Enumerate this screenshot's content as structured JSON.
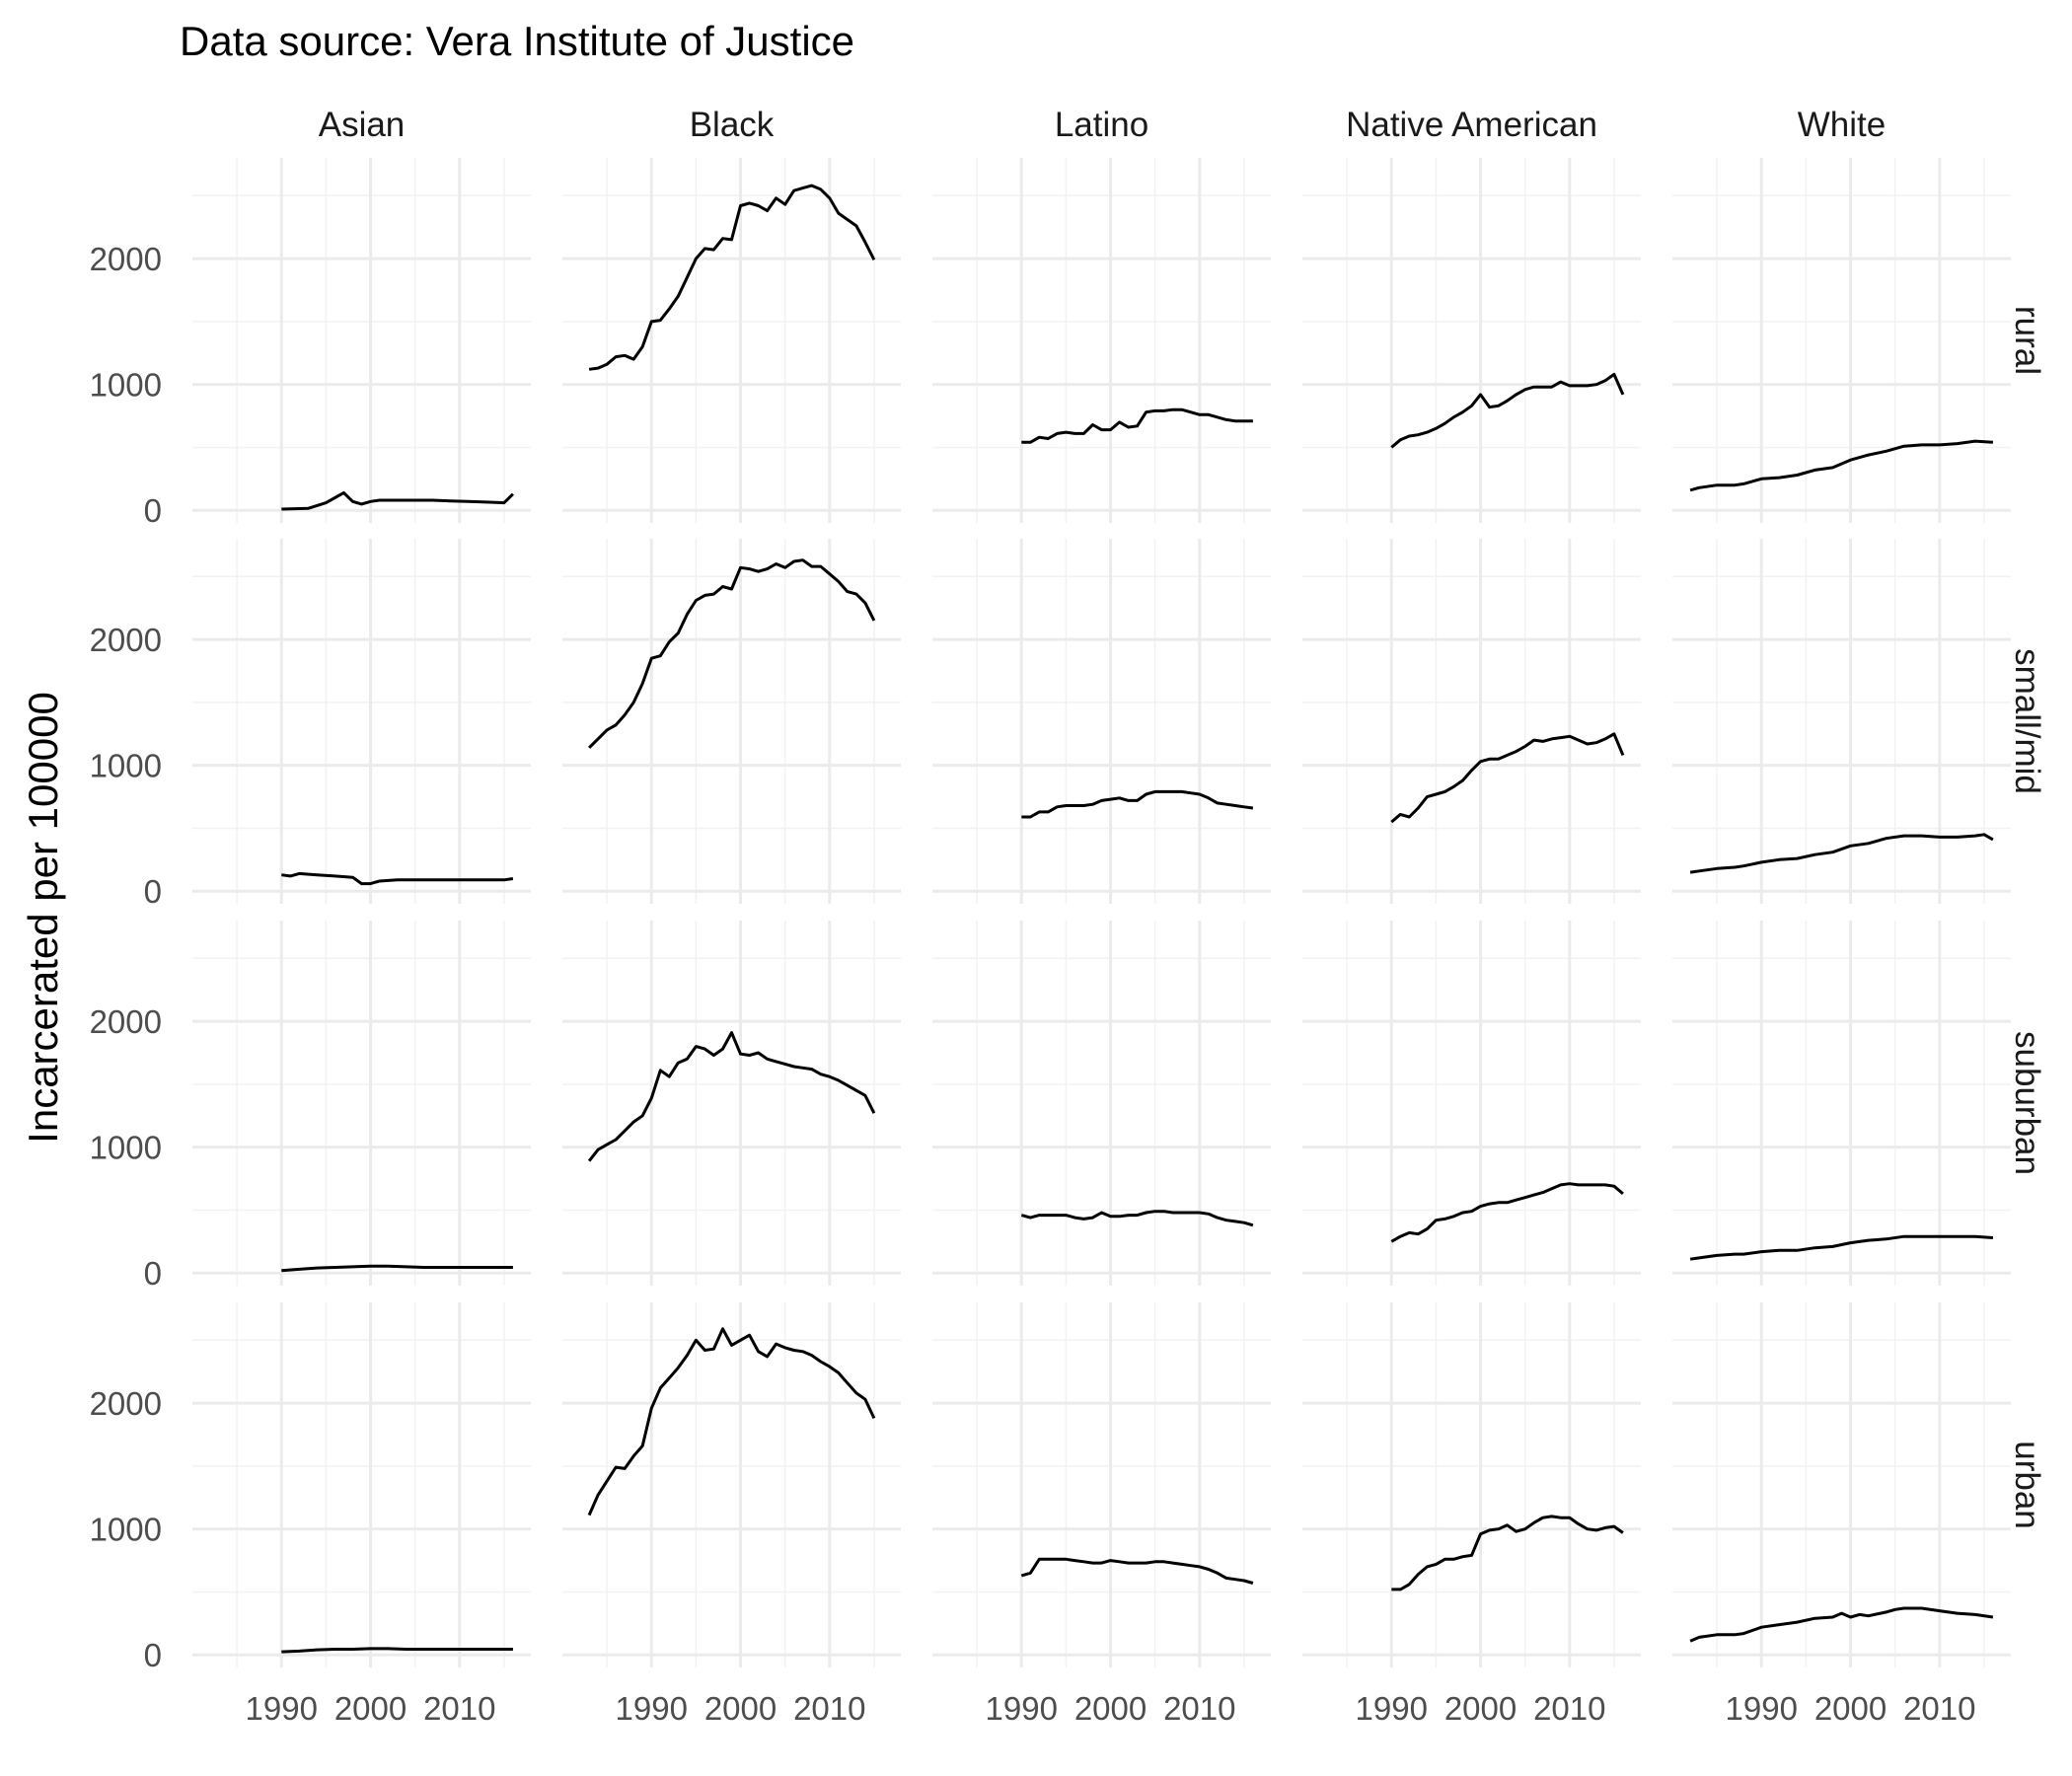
{
  "chart_data": {
    "type": "line",
    "title": "Data source: Vera Institute of Justice",
    "xlabel": "",
    "ylabel": "Incarcerated per 100000",
    "columns": [
      "Asian",
      "Black",
      "Latino",
      "Native American",
      "White"
    ],
    "rows": [
      "rural",
      "small/mid",
      "suburban",
      "urban"
    ],
    "xlim": [
      1980,
      2018
    ],
    "ylim": [
      -100,
      2800
    ],
    "x_ticks": [
      1990,
      2000,
      2010
    ],
    "y_ticks": [
      0,
      1000,
      2000
    ],
    "grid": true,
    "facets": [
      {
        "row": "rural",
        "column": "Asian",
        "x": [
          1990,
          1993,
          1995,
          1997,
          1998,
          1999,
          2000,
          2001,
          2003,
          2005,
          2007,
          2009,
          2011,
          2013,
          2015,
          2016
        ],
        "y": [
          10,
          15,
          60,
          140,
          70,
          50,
          70,
          80,
          80,
          80,
          80,
          75,
          70,
          65,
          60,
          130
        ]
      },
      {
        "row": "rural",
        "column": "Black",
        "x": [
          1983,
          1984,
          1985,
          1986,
          1987,
          1988,
          1989,
          1990,
          1991,
          1992,
          1993,
          1994,
          1995,
          1996,
          1997,
          1998,
          1999,
          2000,
          2001,
          2002,
          2003,
          2004,
          2005,
          2006,
          2007,
          2008,
          2009,
          2010,
          2011,
          2012,
          2013,
          2014,
          2015
        ],
        "y": [
          1120,
          1130,
          1160,
          1220,
          1230,
          1200,
          1300,
          1500,
          1510,
          1600,
          1700,
          1850,
          2000,
          2080,
          2070,
          2160,
          2150,
          2420,
          2440,
          2420,
          2380,
          2480,
          2430,
          2540,
          2560,
          2580,
          2550,
          2480,
          2360,
          2310,
          2260,
          2130,
          1990
        ]
      },
      {
        "row": "rural",
        "column": "Latino",
        "x": [
          1990,
          1991,
          1992,
          1993,
          1994,
          1995,
          1996,
          1997,
          1998,
          1999,
          2000,
          2001,
          2002,
          2003,
          2004,
          2005,
          2006,
          2007,
          2008,
          2009,
          2010,
          2011,
          2012,
          2013,
          2014,
          2015,
          2016
        ],
        "y": [
          540,
          540,
          580,
          570,
          610,
          620,
          610,
          610,
          680,
          640,
          640,
          700,
          660,
          670,
          780,
          790,
          790,
          800,
          800,
          780,
          760,
          760,
          740,
          720,
          710,
          710,
          710
        ]
      },
      {
        "row": "rural",
        "column": "Native American",
        "x": [
          1990,
          1991,
          1992,
          1993,
          1994,
          1995,
          1996,
          1997,
          1998,
          1999,
          2000,
          2001,
          2002,
          2003,
          2004,
          2005,
          2006,
          2007,
          2008,
          2009,
          2010,
          2011,
          2012,
          2013,
          2014,
          2015,
          2016
        ],
        "y": [
          500,
          560,
          590,
          600,
          620,
          650,
          690,
          740,
          780,
          830,
          920,
          820,
          830,
          870,
          920,
          960,
          980,
          980,
          980,
          1020,
          990,
          990,
          990,
          1000,
          1030,
          1080,
          920
        ]
      },
      {
        "row": "rural",
        "column": "White",
        "x": [
          1982,
          1983,
          1985,
          1987,
          1988,
          1990,
          1992,
          1994,
          1996,
          1998,
          2000,
          2002,
          2004,
          2006,
          2008,
          2010,
          2012,
          2014,
          2016
        ],
        "y": [
          160,
          180,
          200,
          200,
          210,
          250,
          260,
          280,
          320,
          340,
          400,
          440,
          470,
          510,
          520,
          520,
          530,
          550,
          540
        ]
      },
      {
        "row": "small/mid",
        "column": "Asian",
        "x": [
          1990,
          1991,
          1992,
          1994,
          1996,
          1998,
          1999,
          2000,
          2001,
          2003,
          2005,
          2007,
          2009,
          2011,
          2013,
          2015,
          2016
        ],
        "y": [
          130,
          120,
          140,
          130,
          120,
          110,
          60,
          60,
          80,
          90,
          90,
          90,
          90,
          90,
          90,
          90,
          100
        ]
      },
      {
        "row": "small/mid",
        "column": "Black",
        "x": [
          1983,
          1984,
          1985,
          1986,
          1987,
          1988,
          1989,
          1990,
          1991,
          1992,
          1993,
          1994,
          1995,
          1996,
          1997,
          1998,
          1999,
          2000,
          2001,
          2002,
          2003,
          2004,
          2005,
          2006,
          2007,
          2008,
          2009,
          2010,
          2011,
          2012,
          2013,
          2014,
          2015
        ],
        "y": [
          1140,
          1210,
          1280,
          1320,
          1400,
          1500,
          1650,
          1850,
          1870,
          1980,
          2050,
          2200,
          2310,
          2350,
          2360,
          2420,
          2400,
          2570,
          2560,
          2540,
          2560,
          2600,
          2570,
          2620,
          2630,
          2580,
          2580,
          2520,
          2460,
          2380,
          2360,
          2290,
          2150
        ]
      },
      {
        "row": "small/mid",
        "column": "Latino",
        "x": [
          1990,
          1991,
          1992,
          1993,
          1994,
          1995,
          1996,
          1997,
          1998,
          1999,
          2000,
          2001,
          2002,
          2003,
          2004,
          2005,
          2006,
          2007,
          2008,
          2009,
          2010,
          2011,
          2012,
          2013,
          2014,
          2015,
          2016
        ],
        "y": [
          590,
          590,
          630,
          630,
          670,
          680,
          680,
          680,
          690,
          720,
          730,
          740,
          720,
          720,
          770,
          790,
          790,
          790,
          790,
          780,
          770,
          740,
          700,
          690,
          680,
          670,
          660
        ]
      },
      {
        "row": "small/mid",
        "column": "Native American",
        "x": [
          1990,
          1991,
          1992,
          1993,
          1994,
          1995,
          1996,
          1997,
          1998,
          1999,
          2000,
          2001,
          2002,
          2003,
          2004,
          2005,
          2006,
          2007,
          2008,
          2009,
          2010,
          2011,
          2012,
          2013,
          2014,
          2015,
          2016
        ],
        "y": [
          550,
          610,
          590,
          660,
          750,
          770,
          790,
          830,
          880,
          960,
          1030,
          1050,
          1050,
          1080,
          1110,
          1150,
          1200,
          1190,
          1210,
          1220,
          1230,
          1200,
          1170,
          1180,
          1210,
          1250,
          1080
        ]
      },
      {
        "row": "small/mid",
        "column": "White",
        "x": [
          1982,
          1983,
          1985,
          1987,
          1988,
          1990,
          1992,
          1994,
          1996,
          1998,
          2000,
          2002,
          2004,
          2006,
          2008,
          2010,
          2012,
          2014,
          2015,
          2016
        ],
        "y": [
          150,
          160,
          180,
          190,
          200,
          230,
          250,
          260,
          290,
          310,
          360,
          380,
          420,
          440,
          440,
          430,
          430,
          440,
          450,
          410
        ]
      },
      {
        "row": "suburban",
        "column": "Asian",
        "x": [
          1990,
          1992,
          1994,
          1996,
          1998,
          2000,
          2002,
          2004,
          2006,
          2008,
          2010,
          2012,
          2014,
          2016
        ],
        "y": [
          20,
          30,
          40,
          45,
          50,
          55,
          55,
          50,
          45,
          45,
          45,
          45,
          45,
          45
        ]
      },
      {
        "row": "suburban",
        "column": "Black",
        "x": [
          1983,
          1984,
          1985,
          1986,
          1987,
          1988,
          1989,
          1990,
          1991,
          1992,
          1993,
          1994,
          1995,
          1996,
          1997,
          1998,
          1999,
          2000,
          2001,
          2002,
          2003,
          2004,
          2005,
          2006,
          2007,
          2008,
          2009,
          2010,
          2011,
          2012,
          2013,
          2014,
          2015
        ],
        "y": [
          890,
          980,
          1020,
          1060,
          1130,
          1200,
          1250,
          1390,
          1610,
          1560,
          1670,
          1700,
          1800,
          1780,
          1730,
          1780,
          1910,
          1740,
          1730,
          1750,
          1700,
          1680,
          1660,
          1640,
          1630,
          1620,
          1580,
          1560,
          1530,
          1490,
          1450,
          1410,
          1270
        ]
      },
      {
        "row": "suburban",
        "column": "Latino",
        "x": [
          1990,
          1991,
          1992,
          1993,
          1994,
          1995,
          1996,
          1997,
          1998,
          1999,
          2000,
          2001,
          2002,
          2003,
          2004,
          2005,
          2006,
          2007,
          2008,
          2009,
          2010,
          2011,
          2012,
          2013,
          2014,
          2015,
          2016
        ],
        "y": [
          460,
          440,
          460,
          460,
          460,
          460,
          440,
          430,
          440,
          480,
          450,
          450,
          460,
          460,
          480,
          490,
          490,
          480,
          480,
          480,
          480,
          470,
          440,
          420,
          410,
          400,
          380
        ]
      },
      {
        "row": "suburban",
        "column": "Native American",
        "x": [
          1990,
          1991,
          1992,
          1993,
          1994,
          1995,
          1996,
          1997,
          1998,
          1999,
          2000,
          2001,
          2002,
          2003,
          2004,
          2005,
          2006,
          2007,
          2008,
          2009,
          2010,
          2011,
          2012,
          2013,
          2014,
          2015,
          2016
        ],
        "y": [
          250,
          290,
          320,
          310,
          350,
          420,
          430,
          450,
          480,
          490,
          530,
          550,
          560,
          560,
          580,
          600,
          620,
          640,
          670,
          700,
          710,
          700,
          700,
          700,
          700,
          690,
          630
        ]
      },
      {
        "row": "suburban",
        "column": "White",
        "x": [
          1982,
          1983,
          1985,
          1987,
          1988,
          1990,
          1992,
          1994,
          1996,
          1998,
          2000,
          2002,
          2004,
          2006,
          2008,
          2010,
          2012,
          2014,
          2016
        ],
        "y": [
          110,
          120,
          140,
          150,
          150,
          170,
          180,
          180,
          200,
          210,
          240,
          260,
          270,
          290,
          290,
          290,
          290,
          290,
          280
        ]
      },
      {
        "row": "urban",
        "column": "Asian",
        "x": [
          1990,
          1992,
          1994,
          1996,
          1998,
          2000,
          2002,
          2004,
          2006,
          2008,
          2010,
          2012,
          2014,
          2016
        ],
        "y": [
          25,
          30,
          40,
          45,
          45,
          50,
          50,
          45,
          45,
          45,
          45,
          45,
          45,
          45
        ]
      },
      {
        "row": "urban",
        "column": "Black",
        "x": [
          1983,
          1984,
          1985,
          1986,
          1987,
          1988,
          1989,
          1990,
          1991,
          1992,
          1993,
          1994,
          1995,
          1996,
          1997,
          1998,
          1999,
          2000,
          2001,
          2002,
          2003,
          2004,
          2005,
          2006,
          2007,
          2008,
          2009,
          2010,
          2011,
          2012,
          2013,
          2014,
          2015
        ],
        "y": [
          1110,
          1270,
          1380,
          1490,
          1480,
          1580,
          1660,
          1960,
          2120,
          2200,
          2280,
          2380,
          2500,
          2420,
          2430,
          2590,
          2460,
          2500,
          2540,
          2410,
          2370,
          2470,
          2440,
          2420,
          2410,
          2380,
          2330,
          2290,
          2240,
          2160,
          2080,
          2030,
          1880
        ]
      },
      {
        "row": "urban",
        "column": "Latino",
        "x": [
          1990,
          1991,
          1992,
          1993,
          1994,
          1995,
          1996,
          1997,
          1998,
          1999,
          2000,
          2001,
          2002,
          2003,
          2004,
          2005,
          2006,
          2007,
          2008,
          2009,
          2010,
          2011,
          2012,
          2013,
          2014,
          2015,
          2016
        ],
        "y": [
          630,
          650,
          760,
          760,
          760,
          760,
          750,
          740,
          730,
          730,
          750,
          740,
          730,
          730,
          730,
          740,
          740,
          730,
          720,
          710,
          700,
          680,
          650,
          610,
          600,
          590,
          570
        ]
      },
      {
        "row": "urban",
        "column": "Native American",
        "x": [
          1990,
          1991,
          1992,
          1993,
          1994,
          1995,
          1996,
          1997,
          1998,
          1999,
          2000,
          2001,
          2002,
          2003,
          2004,
          2005,
          2006,
          2007,
          2008,
          2009,
          2010,
          2011,
          2012,
          2013,
          2014,
          2015,
          2016
        ],
        "y": [
          520,
          520,
          560,
          640,
          700,
          720,
          760,
          760,
          780,
          790,
          960,
          990,
          1000,
          1030,
          980,
          1000,
          1050,
          1090,
          1100,
          1090,
          1090,
          1040,
          1000,
          990,
          1010,
          1020,
          970
        ]
      },
      {
        "row": "urban",
        "column": "White",
        "x": [
          1982,
          1983,
          1985,
          1987,
          1988,
          1990,
          1992,
          1994,
          1996,
          1998,
          1999,
          2000,
          2001,
          2002,
          2004,
          2005,
          2006,
          2008,
          2010,
          2012,
          2014,
          2016
        ],
        "y": [
          110,
          140,
          160,
          160,
          170,
          220,
          240,
          260,
          290,
          300,
          330,
          300,
          320,
          310,
          340,
          360,
          370,
          370,
          350,
          330,
          320,
          300
        ]
      }
    ]
  }
}
